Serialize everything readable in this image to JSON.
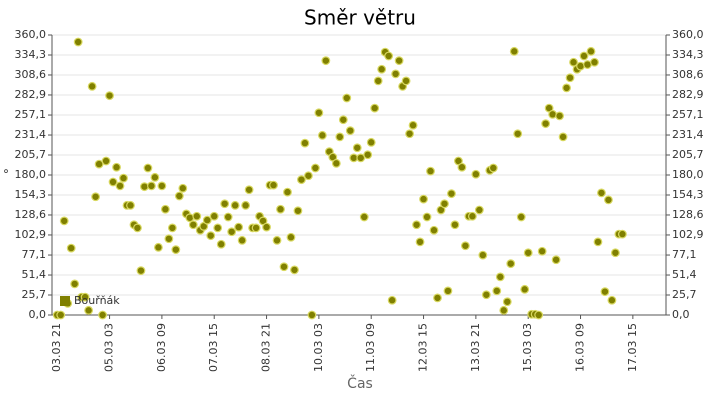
{
  "chart_data": {
    "type": "scatter",
    "title": "Směr větru",
    "x_label": "Čas",
    "y_label": "°",
    "x": [
      "03.03 21",
      "03.03 23",
      "04.03 01",
      "04.03 03",
      "04.03 05",
      "04.03 07",
      "04.03 09",
      "04.03 11",
      "04.03 13",
      "04.03 15",
      "04.03 17",
      "04.03 19",
      "04.03 21",
      "04.03 23",
      "05.03 01",
      "05.03 03",
      "05.03 05",
      "05.03 07",
      "05.03 09",
      "05.03 11",
      "05.03 13",
      "05.03 15",
      "05.03 17",
      "05.03 19",
      "05.03 21",
      "05.03 23",
      "06.03 01",
      "06.03 03",
      "06.03 05",
      "06.03 07",
      "06.03 09",
      "06.03 11",
      "06.03 13",
      "06.03 15",
      "06.03 17",
      "06.03 19",
      "06.03 21",
      "06.03 23",
      "07.03 01",
      "07.03 03",
      "07.03 05",
      "07.03 07",
      "07.03 09",
      "07.03 11",
      "07.03 13",
      "07.03 15",
      "07.03 17",
      "07.03 19",
      "07.03 21",
      "07.03 23",
      "08.03 01",
      "08.03 03",
      "08.03 05",
      "08.03 07",
      "08.03 09",
      "08.03 11",
      "08.03 13",
      "08.03 15",
      "08.03 17",
      "08.03 19",
      "08.03 21",
      "08.03 23",
      "09.03 01",
      "09.03 03",
      "09.03 05",
      "09.03 07",
      "09.03 09",
      "09.03 11",
      "09.03 13",
      "09.03 15",
      "09.03 17",
      "09.03 19",
      "09.03 21",
      "09.03 23",
      "10.03 01",
      "10.03 03",
      "10.03 05",
      "10.03 07",
      "10.03 09",
      "10.03 11",
      "10.03 13",
      "10.03 15",
      "10.03 17",
      "10.03 19",
      "10.03 21",
      "10.03 23",
      "11.03 01",
      "11.03 03",
      "11.03 05",
      "11.03 07",
      "11.03 09",
      "11.03 11",
      "11.03 13",
      "11.03 15",
      "11.03 17",
      "11.03 19",
      "11.03 21",
      "11.03 23",
      "12.03 01",
      "12.03 03",
      "12.03 05",
      "12.03 07",
      "12.03 09",
      "12.03 11",
      "12.03 13",
      "12.03 15",
      "12.03 17",
      "12.03 19",
      "12.03 21",
      "12.03 23",
      "13.03 01",
      "13.03 03",
      "13.03 05",
      "13.03 07",
      "13.03 09",
      "13.03 11",
      "13.03 13",
      "13.03 15",
      "13.03 17",
      "13.03 19",
      "13.03 21",
      "13.03 23",
      "14.03 01",
      "14.03 03",
      "14.03 05",
      "14.03 07",
      "14.03 09",
      "14.03 11",
      "14.03 13",
      "14.03 15",
      "14.03 17",
      "14.03 19",
      "14.03 21",
      "14.03 23",
      "15.03 01",
      "15.03 03",
      "15.03 05",
      "15.03 07",
      "15.03 09",
      "15.03 11",
      "15.03 13",
      "15.03 15",
      "15.03 17",
      "15.03 19",
      "15.03 21",
      "15.03 23",
      "16.03 01",
      "16.03 03",
      "16.03 05",
      "16.03 07",
      "16.03 09",
      "16.03 11",
      "16.03 13",
      "16.03 15",
      "16.03 17",
      "16.03 19",
      "16.03 21",
      "16.03 23",
      "17.03 01",
      "17.03 03",
      "17.03 05",
      "17.03 07",
      "17.03 09"
    ],
    "series": [
      {
        "name": "Bouřňák",
        "color": "#808000",
        "values": [
          0,
          0,
          121,
          15,
          86,
          40,
          351,
          23,
          23,
          6,
          294,
          152,
          194,
          0,
          198,
          282,
          171,
          190,
          166,
          176,
          141,
          141,
          116,
          112,
          57,
          165,
          189,
          166,
          177,
          87,
          166,
          136,
          98,
          112,
          84,
          153,
          163,
          130,
          125,
          116,
          127,
          109,
          114,
          122,
          102,
          127,
          112,
          91,
          143,
          126,
          107,
          141,
          113,
          96,
          141,
          161,
          112,
          112,
          127,
          121,
          113,
          167,
          167,
          96,
          136,
          62,
          158,
          100,
          58,
          134,
          174,
          221,
          179,
          0,
          189,
          260,
          231,
          327,
          210,
          203,
          195,
          229,
          251,
          279,
          237,
          202,
          215,
          202,
          126,
          206,
          222,
          266,
          301,
          316,
          338,
          333,
          19,
          310,
          327,
          294,
          301,
          233,
          244,
          116,
          94,
          149,
          126,
          185,
          109,
          22,
          135,
          143,
          31,
          156,
          116,
          198,
          190,
          89,
          127,
          127,
          181,
          135,
          77,
          26,
          186,
          189,
          31,
          49,
          6,
          17,
          66,
          339,
          233,
          126,
          33,
          80,
          1,
          1,
          0,
          82,
          246,
          266,
          258,
          71,
          256,
          229,
          292,
          305,
          325,
          316,
          320,
          333,
          322,
          339,
          325,
          94,
          157,
          30,
          148,
          19,
          80,
          104,
          104
        ]
      }
    ],
    "xlim": [
      "03.03 18",
      "18.03 10"
    ],
    "xticks": [
      "03.03 21",
      "05.03 03",
      "06.03 09",
      "07.03 15",
      "08.03 21",
      "10.03 03",
      "11.03 09",
      "12.03 15",
      "13.03 21",
      "15.03 03",
      "16.03 09",
      "17.03 15"
    ],
    "ylim": [
      0,
      360
    ],
    "yticks": [
      {
        "value": 0,
        "label": "0,0"
      },
      {
        "value": 25.7,
        "label": "25,7"
      },
      {
        "value": 51.4,
        "label": "51,4"
      },
      {
        "value": 77.1,
        "label": "77,1"
      },
      {
        "value": 102.9,
        "label": "102,9"
      },
      {
        "value": 128.6,
        "label": "128,6"
      },
      {
        "value": 154.3,
        "label": "154,3"
      },
      {
        "value": 180,
        "label": "180,0"
      },
      {
        "value": 205.7,
        "label": "205,7"
      },
      {
        "value": 231.4,
        "label": "231,4"
      },
      {
        "value": 257.1,
        "label": "257,1"
      },
      {
        "value": 282.9,
        "label": "282,9"
      },
      {
        "value": 308.6,
        "label": "308,6"
      },
      {
        "value": 334.3,
        "label": "334,3"
      },
      {
        "value": 360,
        "label": "360,0"
      }
    ],
    "grid": true,
    "legend": "lower left"
  }
}
